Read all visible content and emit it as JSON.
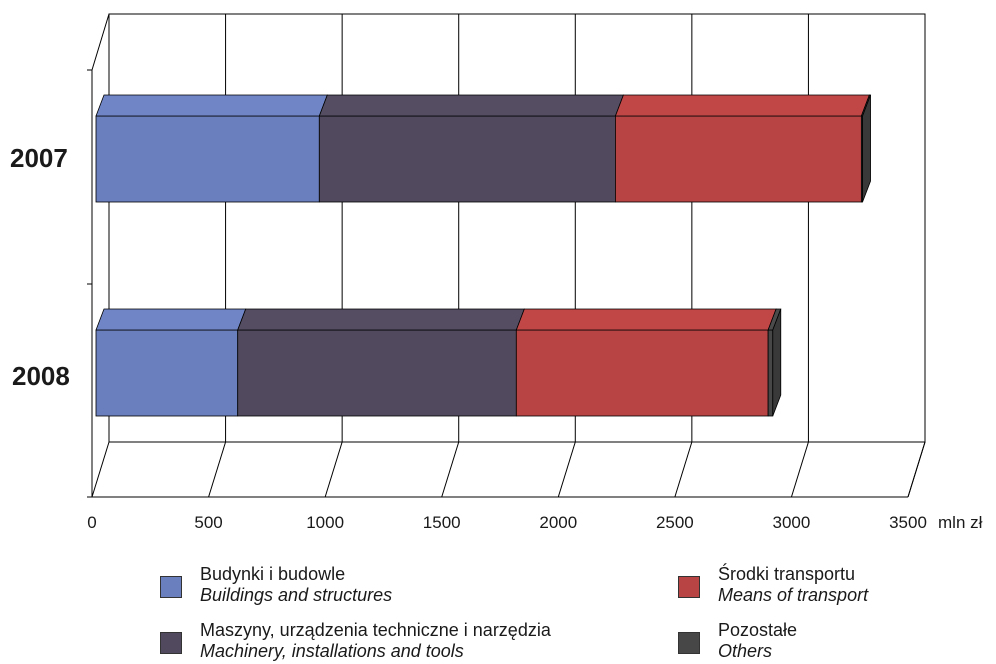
{
  "chart_data": {
    "type": "bar",
    "orientation": "horizontal",
    "stacked": true,
    "three_d": true,
    "categories": [
      "2007",
      "2008"
    ],
    "series": [
      {
        "name": "Budynki i budowle",
        "name_en": "Buildings and structures",
        "color": "#6a7fbd",
        "values": [
          975,
          625
        ]
      },
      {
        "name": "Maszyny, urządzenia techniczne i narzędzia",
        "name_en": "Machinery, installations and tools",
        "color": "#514a5e",
        "values": [
          1270,
          1195
        ]
      },
      {
        "name": "Środki transportu",
        "name_en": "Means of transport",
        "color": "#b84444",
        "values": [
          1055,
          1080
        ]
      },
      {
        "name": "Pozostałe",
        "name_en": "Others",
        "color": "#474747",
        "values": [
          5,
          20
        ]
      }
    ],
    "x_ticks": [
      "0",
      "500",
      "1000",
      "1500",
      "2000",
      "2500",
      "3000",
      "3500"
    ],
    "xlim": [
      0,
      3500
    ],
    "x_unit": "mln zł",
    "grid": true,
    "legend_position": "bottom"
  },
  "legend": {
    "items": [
      {
        "pl": "Budynki i budowle",
        "en": "Buildings and structures"
      },
      {
        "pl": "Środki transportu",
        "en": "Means of transport"
      },
      {
        "pl": "Maszyny, urządzenia techniczne i narzędzia",
        "en": "Machinery, installations and tools"
      },
      {
        "pl": "Pozostałe",
        "en": "Others"
      }
    ]
  }
}
